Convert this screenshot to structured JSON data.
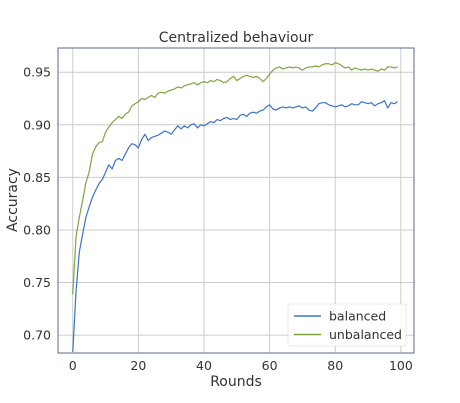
{
  "chart_data": {
    "type": "line",
    "title": "Centralized behaviour",
    "xlabel": "Rounds",
    "ylabel": "Accuracy",
    "xlim": [
      -4.5,
      104
    ],
    "ylim": [
      0.683,
      0.973
    ],
    "xticks": [
      0,
      20,
      40,
      60,
      80,
      100
    ],
    "xtick_labels": [
      "0",
      "20",
      "40",
      "60",
      "80",
      "100"
    ],
    "yticks": [
      0.7,
      0.75,
      0.8,
      0.85,
      0.9,
      0.95
    ],
    "ytick_labels": [
      "0.70",
      "0.75",
      "0.80",
      "0.85",
      "0.90",
      "0.95"
    ],
    "grid": true,
    "legend_position": "bottom-right",
    "x": [
      0,
      1,
      2,
      3,
      4,
      5,
      6,
      7,
      8,
      9,
      10,
      11,
      12,
      13,
      14,
      15,
      16,
      17,
      18,
      19,
      20,
      21,
      22,
      23,
      24,
      25,
      26,
      27,
      28,
      29,
      30,
      31,
      32,
      33,
      34,
      35,
      36,
      37,
      38,
      39,
      40,
      41,
      42,
      43,
      44,
      45,
      46,
      47,
      48,
      49,
      50,
      51,
      52,
      53,
      54,
      55,
      56,
      57,
      58,
      59,
      60,
      61,
      62,
      63,
      64,
      65,
      66,
      67,
      68,
      69,
      70,
      71,
      72,
      73,
      74,
      75,
      76,
      77,
      78,
      79,
      80,
      81,
      82,
      83,
      84,
      85,
      86,
      87,
      88,
      89,
      90,
      91,
      92,
      93,
      94,
      95,
      96,
      97,
      98,
      99
    ],
    "series": [
      {
        "name": "balanced",
        "color": "#3b73c9",
        "values": [
          0.684,
          0.742,
          0.779,
          0.796,
          0.812,
          0.822,
          0.831,
          0.838,
          0.844,
          0.848,
          0.855,
          0.862,
          0.858,
          0.866,
          0.868,
          0.866,
          0.872,
          0.878,
          0.882,
          0.881,
          0.878,
          0.886,
          0.891,
          0.885,
          0.888,
          0.889,
          0.89,
          0.892,
          0.894,
          0.893,
          0.891,
          0.895,
          0.899,
          0.896,
          0.899,
          0.897,
          0.9,
          0.901,
          0.897,
          0.9,
          0.899,
          0.901,
          0.903,
          0.902,
          0.905,
          0.904,
          0.906,
          0.907,
          0.905,
          0.906,
          0.905,
          0.909,
          0.91,
          0.908,
          0.911,
          0.912,
          0.911,
          0.913,
          0.914,
          0.917,
          0.919,
          0.915,
          0.914,
          0.916,
          0.917,
          0.916,
          0.917,
          0.916,
          0.917,
          0.918,
          0.916,
          0.917,
          0.914,
          0.913,
          0.916,
          0.92,
          0.921,
          0.921,
          0.919,
          0.918,
          0.917,
          0.918,
          0.919,
          0.917,
          0.918,
          0.92,
          0.919,
          0.919,
          0.922,
          0.921,
          0.92,
          0.921,
          0.918,
          0.92,
          0.921,
          0.923,
          0.916,
          0.921,
          0.92,
          0.922
        ]
      },
      {
        "name": "unbalanced",
        "color": "#7ea440",
        "values": [
          0.739,
          0.794,
          0.812,
          0.828,
          0.845,
          0.855,
          0.872,
          0.879,
          0.883,
          0.884,
          0.893,
          0.898,
          0.902,
          0.905,
          0.908,
          0.906,
          0.91,
          0.912,
          0.918,
          0.92,
          0.922,
          0.925,
          0.924,
          0.926,
          0.928,
          0.926,
          0.93,
          0.931,
          0.93,
          0.932,
          0.933,
          0.934,
          0.936,
          0.935,
          0.937,
          0.938,
          0.939,
          0.94,
          0.938,
          0.94,
          0.941,
          0.94,
          0.942,
          0.941,
          0.943,
          0.942,
          0.94,
          0.941,
          0.944,
          0.946,
          0.942,
          0.944,
          0.946,
          0.947,
          0.946,
          0.945,
          0.946,
          0.944,
          0.941,
          0.944,
          0.948,
          0.952,
          0.954,
          0.955,
          0.953,
          0.954,
          0.955,
          0.954,
          0.955,
          0.954,
          0.952,
          0.954,
          0.955,
          0.955,
          0.956,
          0.955,
          0.957,
          0.958,
          0.958,
          0.957,
          0.959,
          0.958,
          0.956,
          0.954,
          0.955,
          0.952,
          0.954,
          0.953,
          0.952,
          0.953,
          0.952,
          0.953,
          0.952,
          0.951,
          0.953,
          0.952,
          0.955,
          0.955,
          0.954,
          0.955
        ]
      }
    ]
  }
}
